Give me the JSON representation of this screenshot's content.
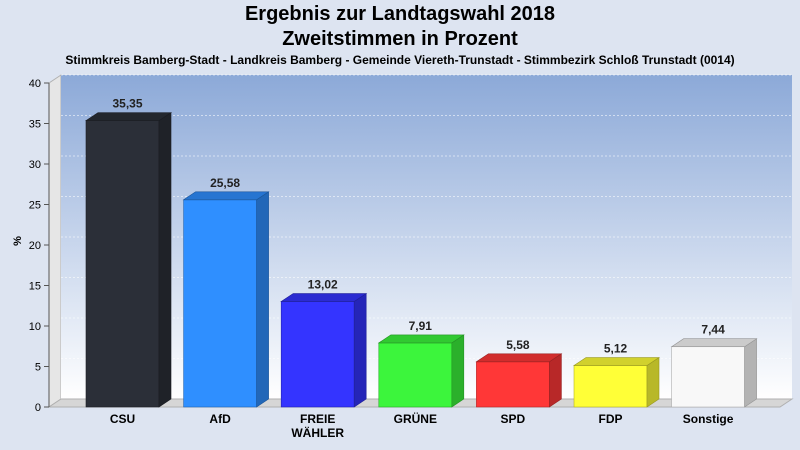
{
  "chart_data": {
    "type": "bar",
    "title": "Ergebnis zur Landtagswahl 2018",
    "title2": "Zweitstimmen in Prozent",
    "subtitle": "Stimmkreis Bamberg-Stadt - Landkreis Bamberg - Gemeinde Viereth-Trunstadt - Stimmbezirk Schloß Trunstadt (0014)",
    "ylabel": "%",
    "ylim": [
      0,
      40
    ],
    "yticks": [
      "0",
      "5",
      "10",
      "15",
      "20",
      "25",
      "30",
      "35",
      "40"
    ],
    "categories": [
      "CSU",
      "AfD",
      "FREIE WÄHLER",
      "GRÜNE",
      "SPD",
      "FDP",
      "Sonstige"
    ],
    "values": [
      35.35,
      25.58,
      13.02,
      7.91,
      5.58,
      5.12,
      7.44
    ],
    "labels": [
      "35,35",
      "25,58",
      "13,02",
      "7,91",
      "5,58",
      "5,12",
      "7,44"
    ],
    "colors": [
      "#2b2f38",
      "#2f8fff",
      "#3434ff",
      "#3cf53c",
      "#ff3737",
      "#ffff37",
      "#f8f8f8"
    ],
    "grid": true
  }
}
